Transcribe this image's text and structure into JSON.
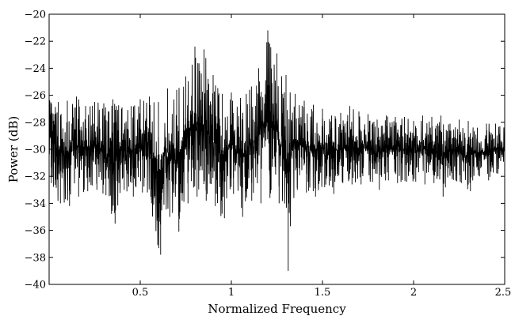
{
  "chart_data": {
    "type": "line",
    "title": "",
    "xlabel": "Normalized Frequency",
    "ylabel": "Power (dB)",
    "xlim": [
      0,
      2.5
    ],
    "ylim": [
      -40,
      -20
    ],
    "x_ticks": [
      {
        "value": 0.5,
        "label": "0.5"
      },
      {
        "value": 1,
        "label": "1"
      },
      {
        "value": 1.5,
        "label": "1.5"
      },
      {
        "value": 2,
        "label": "2"
      },
      {
        "value": 2.5,
        "label": "2.5"
      }
    ],
    "y_ticks": [
      {
        "value": -20,
        "label": "−20"
      },
      {
        "value": -22,
        "label": "−22"
      },
      {
        "value": -24,
        "label": "−24"
      },
      {
        "value": -26,
        "label": "−26"
      },
      {
        "value": -28,
        "label": "−28"
      },
      {
        "value": -30,
        "label": "−30"
      },
      {
        "value": -32,
        "label": "−32"
      },
      {
        "value": -34,
        "label": "−34"
      },
      {
        "value": -36,
        "label": "−36"
      },
      {
        "value": -38,
        "label": "−38"
      },
      {
        "value": -40,
        "label": "−40"
      }
    ],
    "grid": false,
    "legend": "none",
    "line_color": "#000000",
    "series": [
      {
        "x": [
          0.0,
          0.05,
          0.1,
          0.15,
          0.2,
          0.25,
          0.3,
          0.35,
          0.4,
          0.45,
          0.5,
          0.55,
          0.6,
          0.65,
          0.7,
          0.75,
          0.8,
          0.85,
          0.9,
          0.95,
          1.0,
          1.05,
          1.1,
          1.15,
          1.2,
          1.25,
          1.3,
          1.35,
          1.4,
          1.45,
          1.5,
          1.55,
          1.6,
          1.65,
          1.7,
          1.75,
          1.8,
          1.85,
          1.9,
          1.95,
          2.0,
          2.05,
          2.1,
          2.15,
          2.2,
          2.25,
          2.3,
          2.35,
          2.4,
          2.45,
          2.5
        ],
        "upper": [
          -24.3,
          -26.5,
          -26.4,
          -26.1,
          -26.8,
          -26.5,
          -26.6,
          -26.3,
          -26.9,
          -26.8,
          -26.3,
          -26.1,
          -26.5,
          -25.5,
          -25.6,
          -24.6,
          -22.4,
          -22.6,
          -24.5,
          -25.9,
          -25.8,
          -26.2,
          -25.6,
          -24.0,
          -21.2,
          -22.9,
          -24.5,
          -25.9,
          -26.4,
          -26.7,
          -27.0,
          -27.5,
          -27.3,
          -26.8,
          -27.2,
          -27.4,
          -27.8,
          -27.5,
          -27.6,
          -27.6,
          -27.9,
          -27.5,
          -27.6,
          -27.5,
          -28.1,
          -27.8,
          -27.9,
          -28.4,
          -28.1,
          -28.1,
          -28.3
        ],
        "lower": [
          -32.5,
          -34.0,
          -34.2,
          -33.5,
          -33.1,
          -33.0,
          -33.4,
          -35.5,
          -33.0,
          -33.5,
          -33.2,
          -34.0,
          -37.8,
          -35.0,
          -36.1,
          -34.0,
          -33.5,
          -33.8,
          -34.2,
          -35.1,
          -33.3,
          -35.0,
          -33.8,
          -34.0,
          -33.6,
          -34.0,
          -39.0,
          -33.0,
          -33.2,
          -33.5,
          -32.8,
          -33.3,
          -32.5,
          -32.6,
          -32.6,
          -32.4,
          -33.0,
          -32.3,
          -32.5,
          -32.4,
          -32.4,
          -32.6,
          -32.5,
          -33.5,
          -32.2,
          -32.5,
          -33.1,
          -32.0,
          -32.3,
          -31.8,
          -32.0
        ]
      }
    ]
  }
}
